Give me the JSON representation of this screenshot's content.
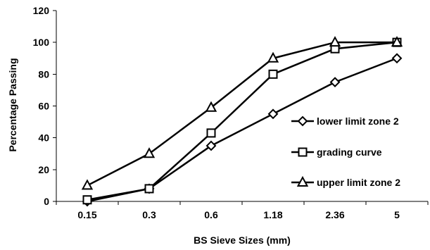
{
  "chart_data": {
    "type": "line",
    "title": "",
    "xlabel": "BS Sieve Sizes (mm)",
    "ylabel": "Percentage Passing",
    "categories": [
      "0.15",
      "0.3",
      "0.6",
      "1.18",
      "2.36",
      "5"
    ],
    "ylim": [
      0,
      120
    ],
    "yticks": [
      0,
      20,
      40,
      60,
      80,
      100,
      120
    ],
    "grid": false,
    "legend_position": "right",
    "series": [
      {
        "name": "lower limit zone 2",
        "marker": "diamond",
        "values": [
          0,
          8,
          35,
          55,
          75,
          90
        ]
      },
      {
        "name": "grading curve",
        "marker": "square",
        "values": [
          1,
          8,
          43,
          80,
          96,
          100
        ]
      },
      {
        "name": "upper limit zone 2",
        "marker": "triangle",
        "values": [
          10,
          30,
          59,
          90,
          100,
          100
        ]
      }
    ]
  }
}
